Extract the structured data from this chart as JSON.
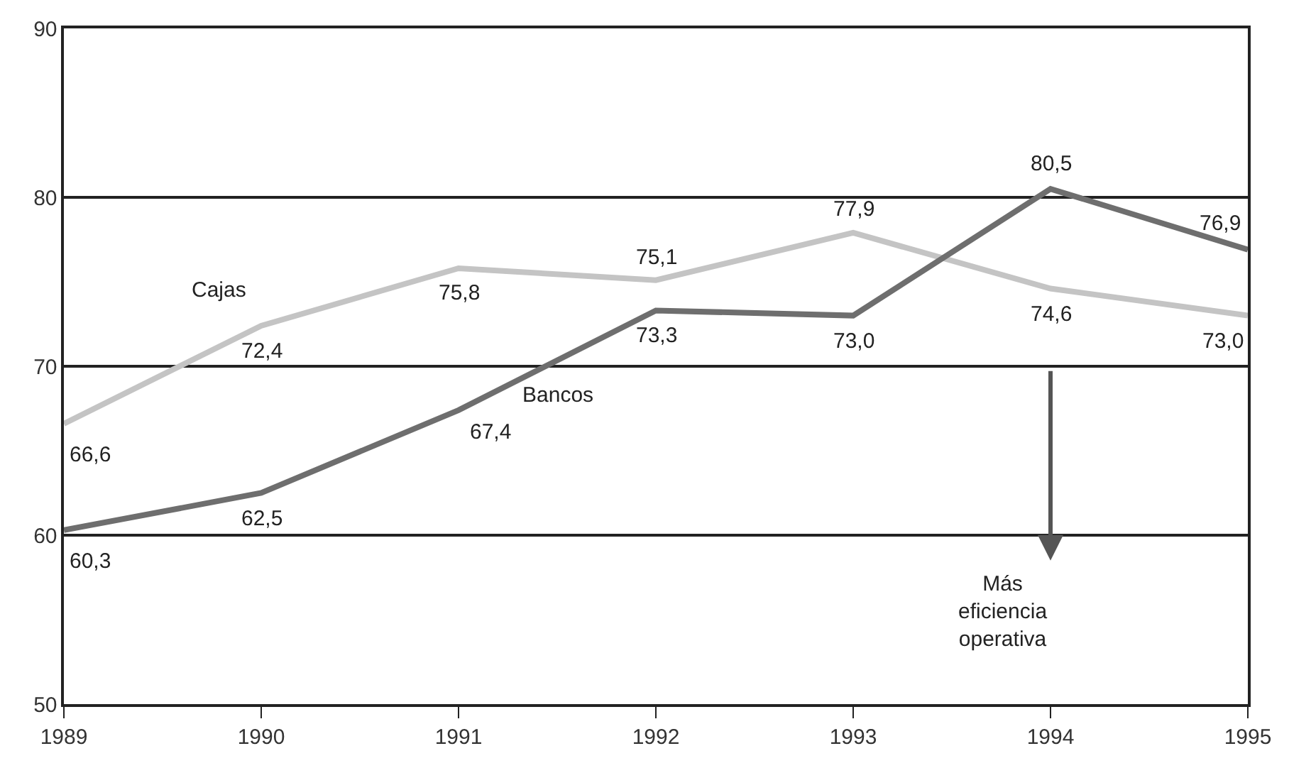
{
  "chart_data": {
    "type": "line",
    "x": [
      1989,
      1990,
      1991,
      1992,
      1993,
      1994,
      1995
    ],
    "series": [
      {
        "name": "Cajas",
        "color": "#c4c4c4",
        "values": [
          66.6,
          72.4,
          75.8,
          75.1,
          77.9,
          74.6,
          73.0
        ],
        "value_labels": [
          "66,6",
          "72,4",
          "75,8",
          "75,1",
          "77,9",
          "74,6",
          "73,0"
        ]
      },
      {
        "name": "Bancos",
        "color": "#6e6e6e",
        "values": [
          60.3,
          62.5,
          67.4,
          73.3,
          73.0,
          80.5,
          76.9
        ],
        "value_labels": [
          "60,3",
          "62,5",
          "67,4",
          "73,3",
          "73,0",
          "80,5",
          "76,9"
        ]
      }
    ],
    "xlim": [
      1989,
      1995
    ],
    "xticks": [
      1989,
      1990,
      1991,
      1992,
      1993,
      1994,
      1995
    ],
    "ylim": [
      50,
      90
    ],
    "yticks": [
      50,
      60,
      70,
      80,
      90
    ],
    "grid": "y",
    "legend": false,
    "marker": "none",
    "line_style": "solid",
    "annotations": [
      "Más eficiencia operativa"
    ]
  }
}
